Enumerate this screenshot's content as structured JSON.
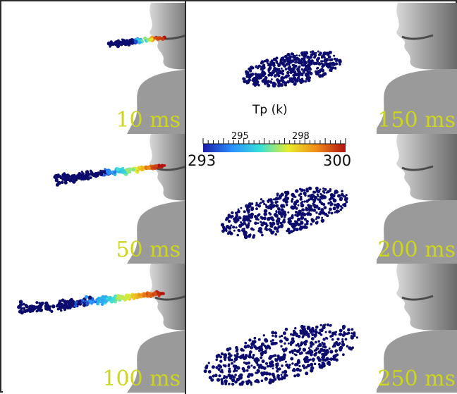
{
  "figure": {
    "colorbar": {
      "title": "Tp (k)",
      "min_label": "293",
      "max_label": "300",
      "tick_labels": [
        "295",
        "298"
      ],
      "colormap": [
        "#1a1aa8",
        "#2a8fff",
        "#36e0d8",
        "#e8ec2c",
        "#f08a18",
        "#b01010"
      ]
    },
    "panels": [
      {
        "label": "10 ms"
      },
      {
        "label": "50 ms"
      },
      {
        "label": "100 ms"
      },
      {
        "label": "150 ms"
      },
      {
        "label": "200 ms"
      },
      {
        "label": "250 ms"
      }
    ],
    "colors": {
      "cold_particle": "#0c0c6e",
      "label": "#ccd61e",
      "head": "#a8a8a8"
    }
  }
}
